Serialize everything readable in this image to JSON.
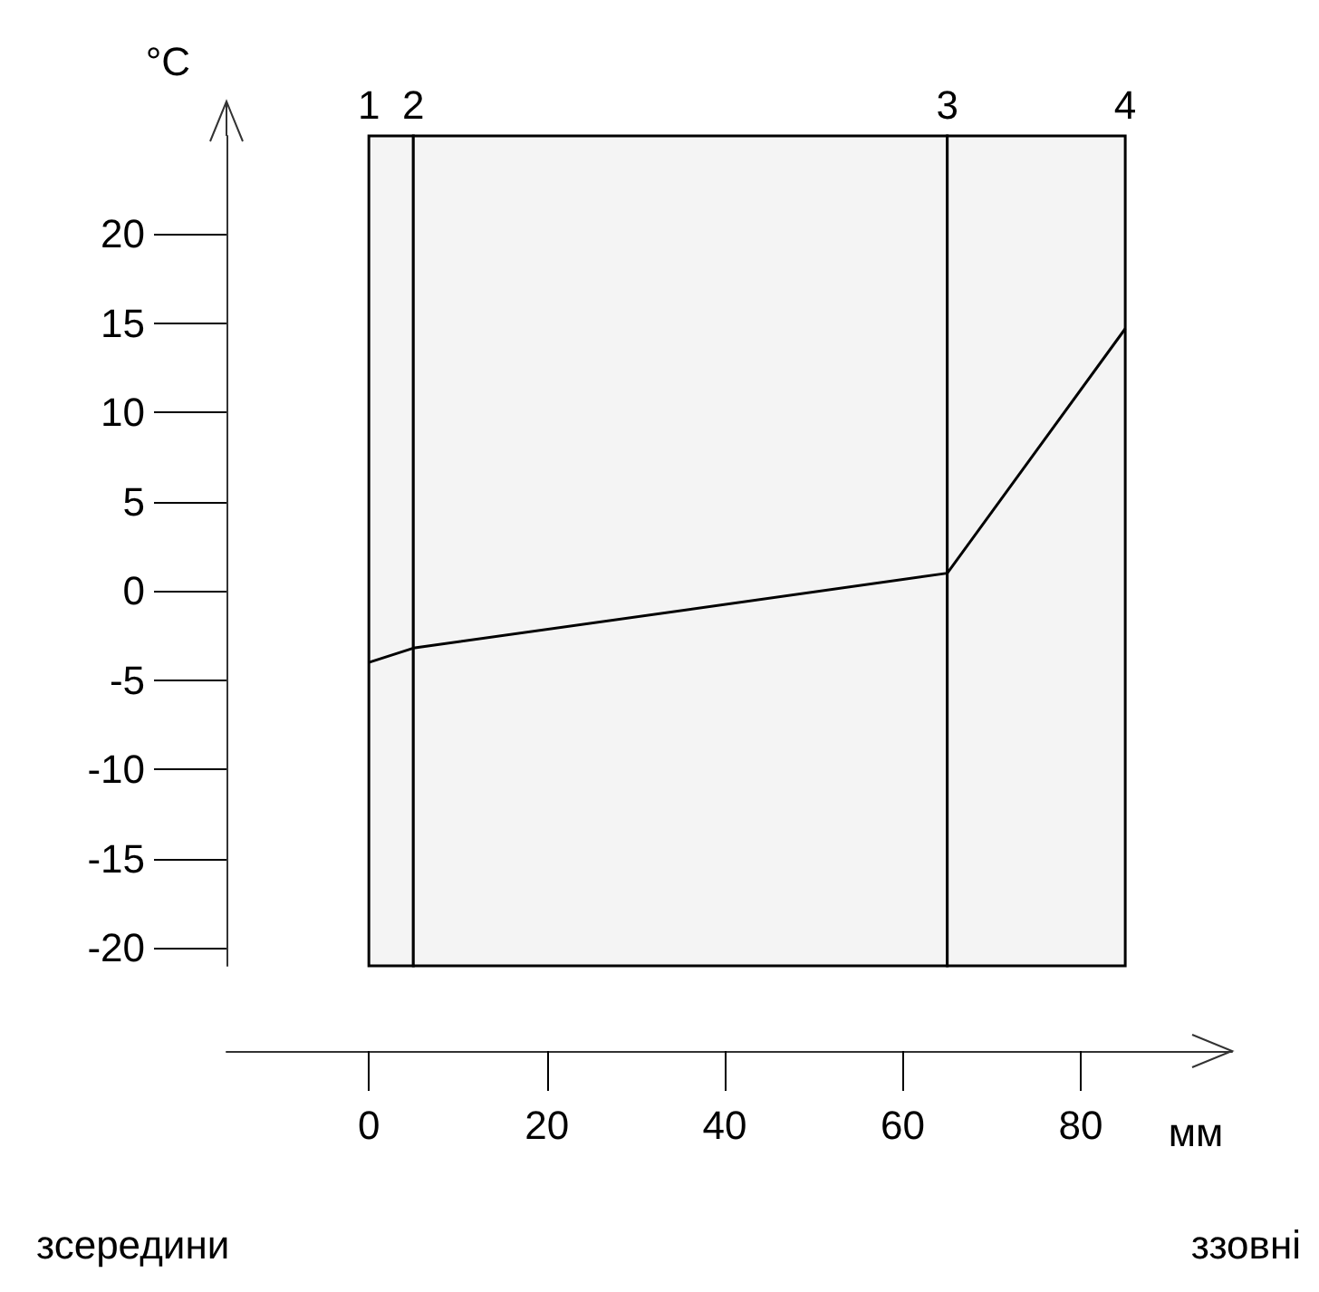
{
  "chart_data": {
    "type": "line",
    "ylabel": "°C",
    "xlabel": "мм",
    "x": [
      0,
      5,
      65,
      85
    ],
    "series": [
      {
        "color": "#000000",
        "values": [
          -4,
          -3.2,
          1,
          14.7
        ]
      }
    ],
    "xlim": [
      -16,
      97
    ],
    "xticks": [
      0,
      20,
      40,
      60,
      80
    ],
    "ylim": [
      -21,
      25.5
    ],
    "yticks": [
      -20,
      -15,
      -10,
      -5,
      0,
      5,
      10,
      15,
      20
    ],
    "bands": [
      {
        "axis": "x",
        "from": 0,
        "to": 5,
        "color": "#f4f4f4"
      },
      {
        "axis": "x",
        "from": 5,
        "to": 65,
        "color": "#f4f4f4"
      },
      {
        "axis": "x",
        "from": 65,
        "to": 85,
        "color": "#f4f4f4"
      }
    ],
    "annotations": [
      "зсередини",
      "ззовні",
      {
        "text": "1",
        "x": 0,
        "y": 25.5
      },
      {
        "text": "2",
        "x": 5,
        "y": 25.5
      },
      {
        "text": "3",
        "x": 65,
        "y": 25.5
      },
      {
        "text": "4",
        "x": 85,
        "y": 25.5
      }
    ],
    "marker": "none",
    "grid": false
  }
}
